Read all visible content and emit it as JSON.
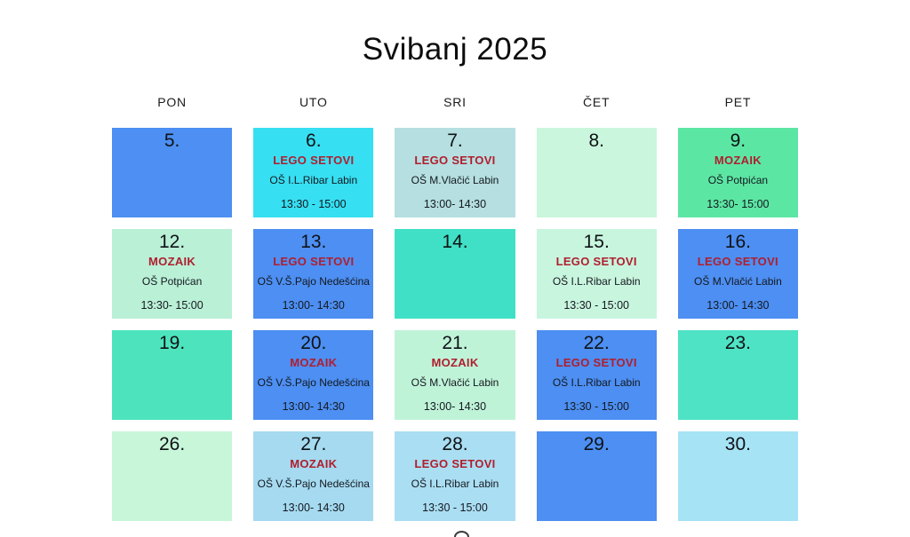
{
  "title": "Svibanj 2025",
  "weekdays": [
    "PON",
    "UTO",
    "SRI",
    "ČET",
    "PET"
  ],
  "palette": {
    "blue": "#4d8ff2",
    "cyan": "#36dff2",
    "pale_teal": "#b5dfe0",
    "mint": "#c8f5dc",
    "spring_green": "#5ce6a4",
    "turquoise": "#40e0c6",
    "sky_blue": "#a6ddf2",
    "activity_text": "#b01e2e"
  },
  "weeks": [
    [
      {
        "day": "5.",
        "activity": "",
        "school": "",
        "time": "",
        "bg": "#4d8ff2"
      },
      {
        "day": "6.",
        "activity": "LEGO SETOVI",
        "school": "OŠ I.L.Ribar Labin",
        "time": "13:30 - 15:00",
        "bg": "#36dff2"
      },
      {
        "day": "7.",
        "activity": "LEGO SETOVI",
        "school": "OŠ M.Vlačić Labin",
        "time": "13:00- 14:30",
        "bg": "#b5dfe0"
      },
      {
        "day": "8.",
        "activity": "",
        "school": "",
        "time": "",
        "bg": "#c9f6dc"
      },
      {
        "day": "9.",
        "activity": "MOZAIK",
        "school": "OŠ Potpićan",
        "time": "13:30- 15:00",
        "bg": "#5ce6a4"
      }
    ],
    [
      {
        "day": "12.",
        "activity": "MOZAIK",
        "school": "OŠ Potpićan",
        "time": "13:30- 15:00",
        "bg": "#b9f0d6"
      },
      {
        "day": "13.",
        "activity": "LEGO SETOVI",
        "school": "OŠ V.Š.Pajo Nedešćina",
        "time": "13:00- 14:30",
        "bg": "#4d8ff2"
      },
      {
        "day": "14.",
        "activity": "",
        "school": "",
        "time": "",
        "bg": "#3fe0c6"
      },
      {
        "day": "15.",
        "activity": "LEGO SETOVI",
        "school": "OŠ I.L.Ribar Labin",
        "time": "13:30 - 15:00",
        "bg": "#c8f5de"
      },
      {
        "day": "16.",
        "activity": "LEGO SETOVI",
        "school": "OŠ M.Vlačić Labin",
        "time": "13:00- 14:30",
        "bg": "#4d8ff2"
      }
    ],
    [
      {
        "day": "19.",
        "activity": "",
        "school": "",
        "time": "",
        "bg": "#4de4bd"
      },
      {
        "day": "20.",
        "activity": "MOZAIK",
        "school": "OŠ V.Š.Pajo Nedešćina",
        "time": "13:00- 14:30",
        "bg": "#4d8ff2"
      },
      {
        "day": "21.",
        "activity": "MOZAIK",
        "school": "OŠ M.Vlačić Labin",
        "time": "13:00- 14:30",
        "bg": "#bff3d8"
      },
      {
        "day": "22.",
        "activity": "LEGO SETOVI",
        "school": "OŠ I.L.Ribar Labin",
        "time": "13:30 - 15:00",
        "bg": "#4d8ff2"
      },
      {
        "day": "23.",
        "activity": "",
        "school": "",
        "time": "",
        "bg": "#4ee3c5"
      }
    ],
    [
      {
        "day": "26.",
        "activity": "",
        "school": "",
        "time": "",
        "bg": "#c8f6d9"
      },
      {
        "day": "27.",
        "activity": "MOZAIK",
        "school": "OŠ V.Š.Pajo Nedešćina",
        "time": "13:00- 14:30",
        "bg": "#a5daf0"
      },
      {
        "day": "28.",
        "activity": "LEGO SETOVI",
        "school": "OŠ I.L.Ribar Labin",
        "time": "13:30 - 15:00",
        "bg": "#aadef2"
      },
      {
        "day": "29.",
        "activity": "",
        "school": "",
        "time": "",
        "bg": "#4d8ff2"
      },
      {
        "day": "30.",
        "activity": "",
        "school": "",
        "time": "",
        "bg": "#a6e3f5"
      }
    ]
  ]
}
